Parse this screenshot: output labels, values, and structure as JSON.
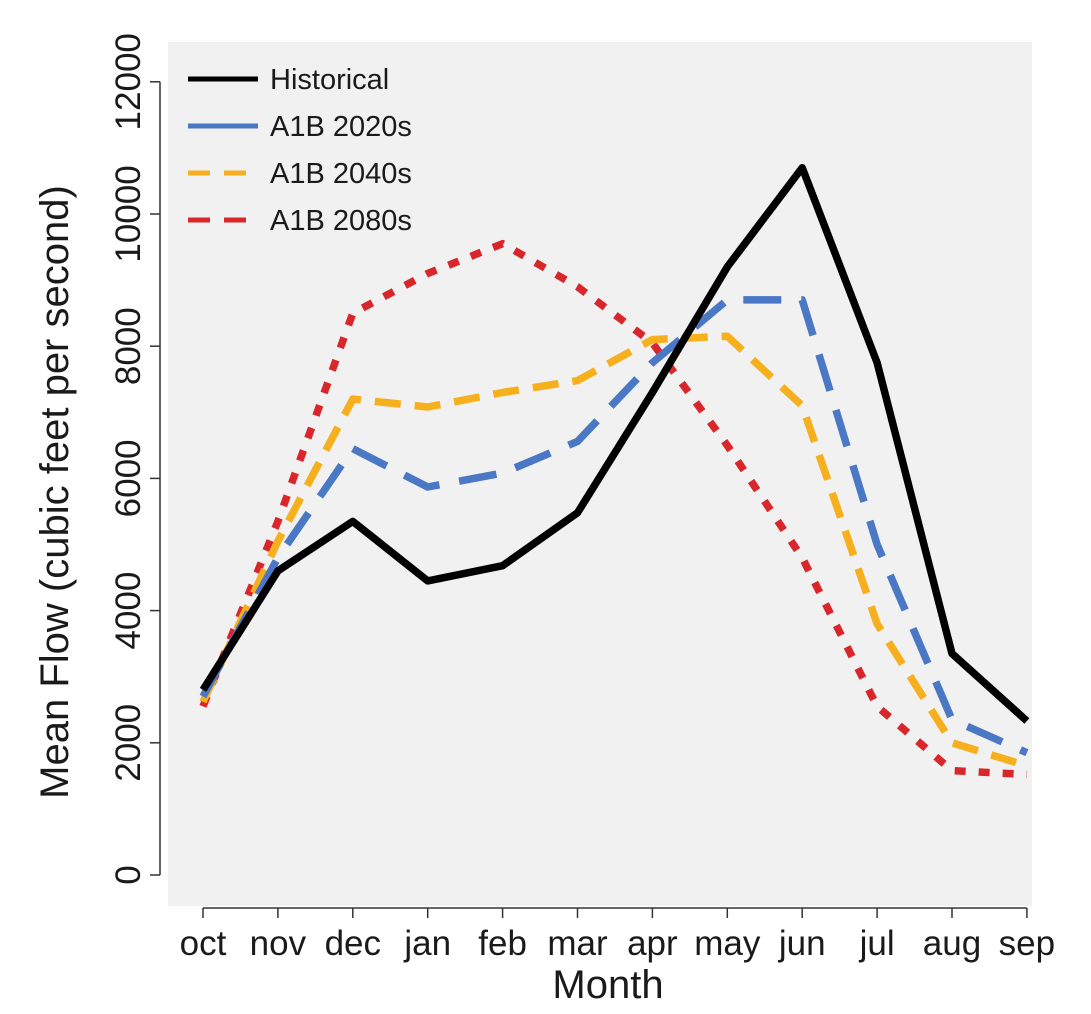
{
  "chart_data": {
    "type": "line",
    "title": "",
    "xlabel": "Month",
    "ylabel": "Mean Flow (cubic feet per second)",
    "categories": [
      "oct",
      "nov",
      "dec",
      "jan",
      "feb",
      "mar",
      "apr",
      "may",
      "jun",
      "jul",
      "aug",
      "sep"
    ],
    "ylim": [
      -500,
      12500
    ],
    "yticks": [
      0,
      2000,
      4000,
      6000,
      8000,
      10000,
      12000
    ],
    "grid": false,
    "legend_position": "top-left",
    "series": [
      {
        "name": "Historical",
        "color": "#000000",
        "dash": "solid",
        "values": [
          2800,
          4600,
          5350,
          4450,
          4680,
          5480,
          7300,
          9200,
          10700,
          7750,
          3350,
          2330
        ]
      },
      {
        "name": "A1B 2020s",
        "color": "#4a78c4",
        "dash": "long-dash",
        "values": [
          2700,
          4800,
          6450,
          5870,
          6080,
          6560,
          7750,
          8700,
          8700,
          5000,
          2350,
          1850
        ]
      },
      {
        "name": "A1B 2040s",
        "color": "#f6b01e",
        "dash": "dash-dot",
        "values": [
          2620,
          5050,
          7200,
          7080,
          7300,
          7480,
          8100,
          8150,
          7100,
          3800,
          2000,
          1650
        ]
      },
      {
        "name": "A1B 2080s",
        "color": "#d9262b",
        "dash": "dotted",
        "values": [
          2550,
          5350,
          8500,
          9100,
          9550,
          8900,
          8050,
          6500,
          4800,
          2550,
          1580,
          1520
        ]
      }
    ]
  }
}
